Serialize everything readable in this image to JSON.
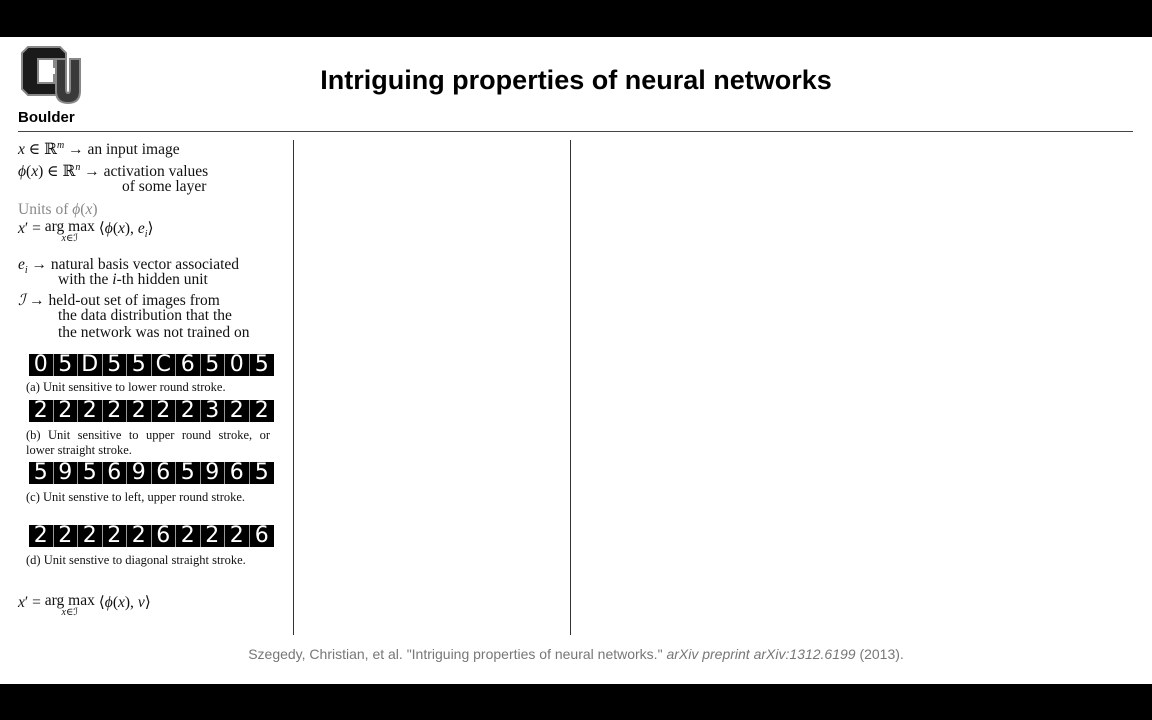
{
  "logo": {
    "wordmark": "Boulder",
    "icon": "cu-boulder-logo-icon"
  },
  "title": "Intriguing properties of neural networks",
  "lines": {
    "input_image": "an input image",
    "activation_1": "activation values",
    "activation_2": "of some layer",
    "units_heading": "Units of",
    "basis_1": "natural basis vector associated",
    "basis_2": "with the",
    "basis_2b": "-th hidden unit",
    "heldout_1": "held-out set of images from",
    "heldout_2": "the data distribution that the",
    "heldout_3": "the network was not trained on"
  },
  "figure": {
    "rows": [
      {
        "digits": [
          "0",
          "5",
          "D",
          "5",
          "5",
          "C",
          "6",
          "5",
          "0",
          "5"
        ],
        "caption": "(a) Unit sensitive to lower round stroke."
      },
      {
        "digits": [
          "2",
          "2",
          "2",
          "2",
          "2",
          "2",
          "2",
          "3",
          "2",
          "2"
        ],
        "caption": "(b) Unit sensitive to upper round stroke, or lower straight stroke."
      },
      {
        "digits": [
          "5",
          "9",
          "5",
          "6",
          "9",
          "6",
          "5",
          "9",
          "6",
          "5"
        ],
        "caption": "(c) Unit senstive to left, upper round stroke."
      },
      {
        "digits": [
          "2",
          "2",
          "2",
          "2",
          "2",
          "6",
          "2",
          "2",
          "2",
          "6"
        ],
        "caption": "(d) Unit senstive to diagonal straight stroke."
      }
    ]
  },
  "citation": {
    "authors": "Szegedy, Christian, et al. \"Intriguing properties of neural networks.\"",
    "journal": "arXiv preprint arXiv:1312.6199",
    "year": "(2013)."
  }
}
